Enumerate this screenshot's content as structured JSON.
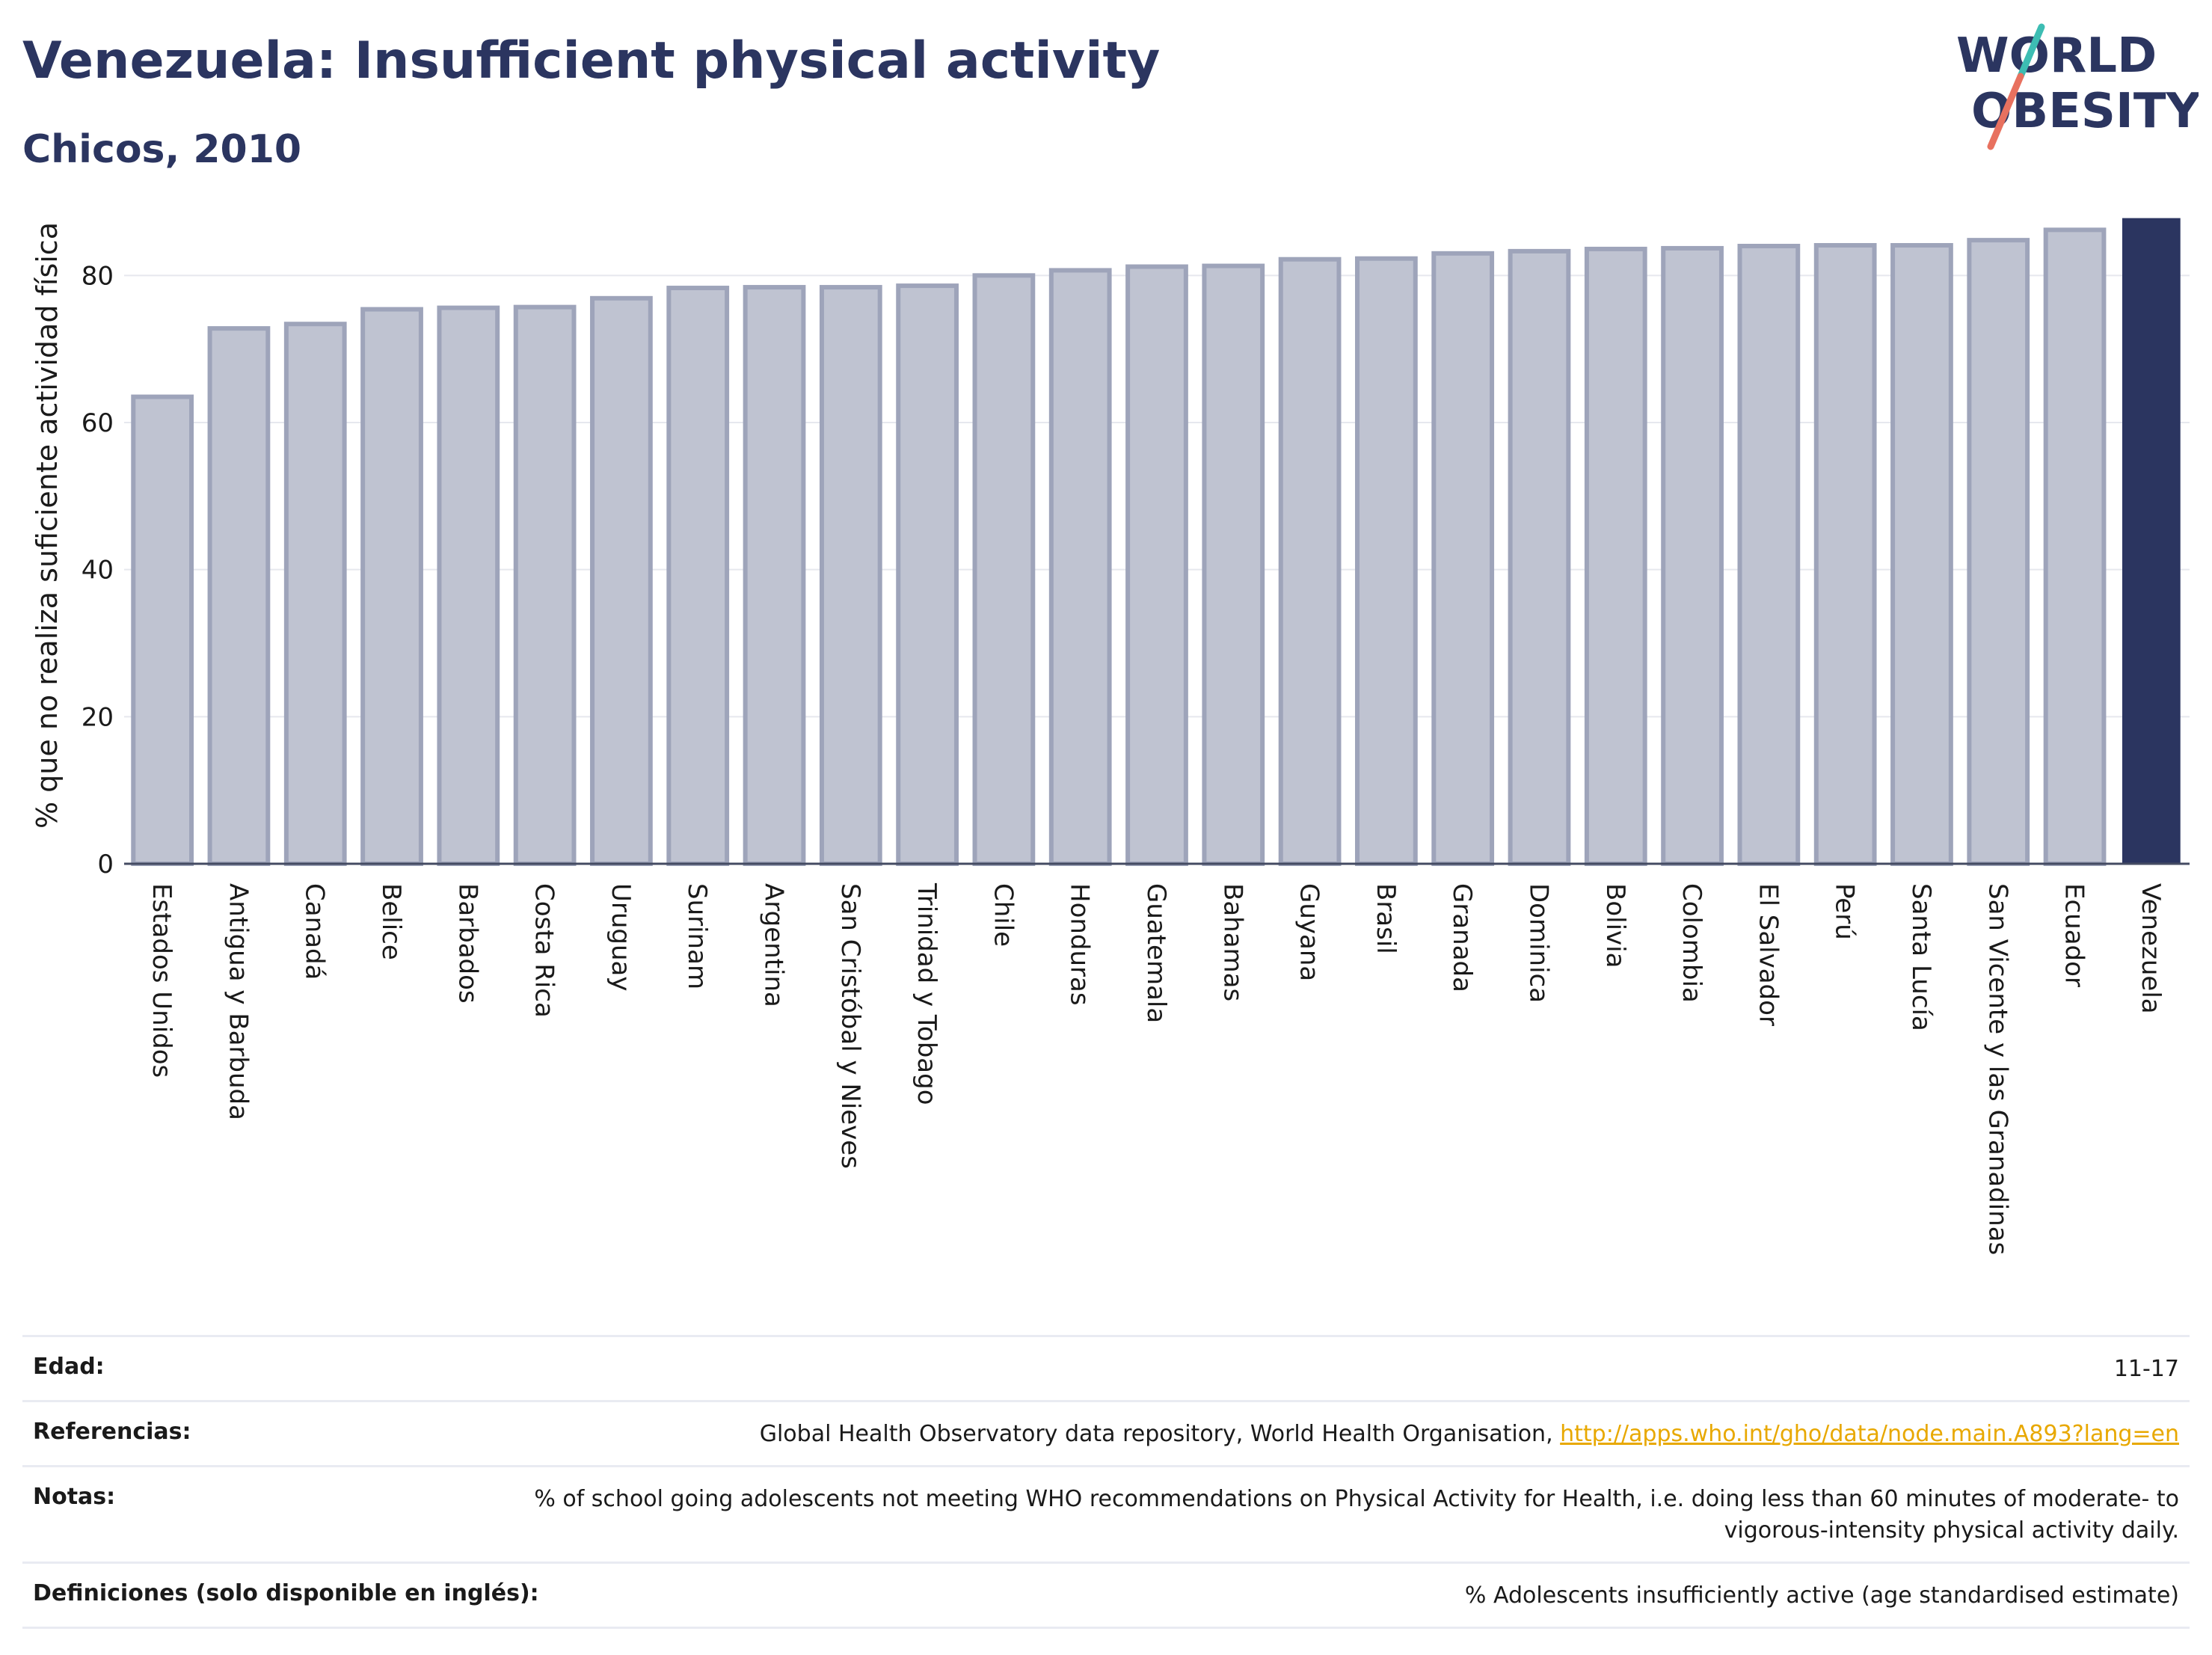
{
  "header": {
    "title": "Venezuela: Insufficient physical activity",
    "subtitle": "Chicos, 2010"
  },
  "logo": {
    "line1": "WORLD",
    "line2": "OBESITY"
  },
  "colors": {
    "bar": "#bfc3d1",
    "bar_stroke": "#9ea4ba",
    "highlight": "#2b3560",
    "text": "#2b3560"
  },
  "chart_data": {
    "type": "bar",
    "ylabel": "% que no realiza suficiente actividad física",
    "ylim": [
      0,
      90
    ],
    "yticks": [
      0,
      20,
      40,
      60,
      80
    ],
    "grid": true,
    "highlight": "Venezuela",
    "categories": [
      "Estados Unidos",
      "Antigua y Barbuda",
      "Canadá",
      "Belice",
      "Barbados",
      "Costa Rica",
      "Uruguay",
      "Surinam",
      "Argentina",
      "San Cristóbal y Nieves",
      "Trinidad y Tobago",
      "Chile",
      "Honduras",
      "Guatemala",
      "Bahamas",
      "Guyana",
      "Brasil",
      "Granada",
      "Dominica",
      "Bolivia",
      "Colombia",
      "El Salvador",
      "Perú",
      "Santa Lucía",
      "San Vicente y las Granadinas",
      "Ecuador",
      "Venezuela"
    ],
    "values": [
      63.5,
      72.8,
      73.4,
      75.4,
      75.6,
      75.7,
      76.9,
      78.3,
      78.4,
      78.4,
      78.6,
      80.0,
      80.7,
      81.2,
      81.3,
      82.2,
      82.3,
      83.0,
      83.3,
      83.6,
      83.7,
      84.0,
      84.1,
      84.1,
      84.8,
      86.2,
      87.8
    ]
  },
  "info": {
    "rows": [
      {
        "label": "Edad:",
        "value": "11-17"
      },
      {
        "label": "Referencias:",
        "value": "Global Health Observatory data repository, World Health Organisation, ",
        "link": "http://apps.who.int/gho/data/node.main.A893?lang=en"
      },
      {
        "label": "Notas:",
        "value": "% of school going adolescents not meeting WHO recommendations on Physical Activity for Health, i.e. doing less than 60 minutes of moderate- to vigorous-intensity physical activity daily."
      },
      {
        "label": "Definiciones (solo disponible en inglés):",
        "value": "% Adolescents insufficiently active (age standardised estimate)"
      }
    ]
  }
}
